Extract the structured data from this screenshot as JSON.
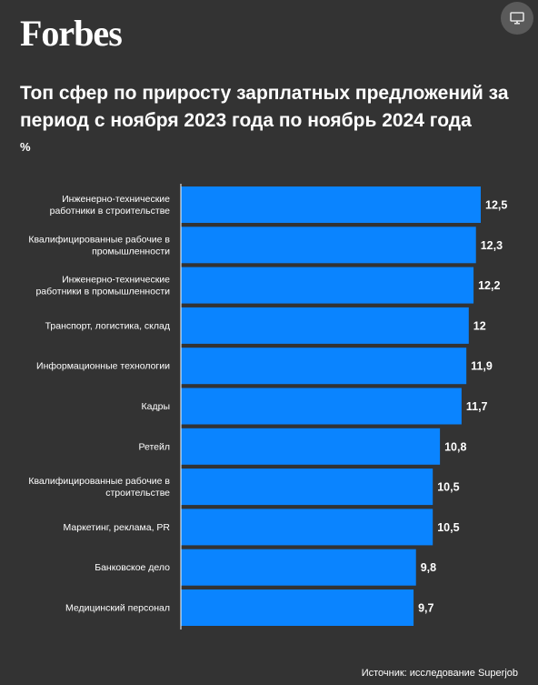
{
  "brand": {
    "logo": "Forbes",
    "screen_icon": "monitor-icon"
  },
  "title": "Топ сфер по приросту зарплатных предложений за период с ноября 2023 года по ноябрь 2024 года",
  "unit": "%",
  "source": "Источник: исследование Superjob",
  "colors": {
    "background": "#333333",
    "bar": "#0a84ff",
    "text": "#ffffff"
  },
  "chart_data": {
    "type": "bar",
    "orientation": "horizontal",
    "categories": [
      "Инженерно-технические работники в строительстве",
      "Квалифицированные рабочие в промышленности",
      "Инженерно-технические работники в промышленности",
      "Транспорт, логистика, склад",
      "Информационные технологии",
      "Кадры",
      "Ретейл",
      "Квалифицированные рабочие в строительстве",
      "Маркетинг, реклама, PR",
      "Банковское дело",
      "Медицинский персонал"
    ],
    "category_lines": [
      [
        "Инженерно-технические",
        "работники в строительстве"
      ],
      [
        "Квалифицированные рабочие в",
        "промышленности"
      ],
      [
        "Инженерно-технические",
        "работники в промышленности"
      ],
      [
        "Транспорт, логистика, склад"
      ],
      [
        "Информационные технологии"
      ],
      [
        "Кадры"
      ],
      [
        "Ретейл"
      ],
      [
        "Квалифицированные рабочие в",
        "строительстве"
      ],
      [
        "Маркетинг, реклама, PR"
      ],
      [
        "Банковское дело"
      ],
      [
        "Медицинский персонал"
      ]
    ],
    "values": [
      12.5,
      12.3,
      12.2,
      12,
      11.9,
      11.7,
      10.8,
      10.5,
      10.5,
      9.8,
      9.7
    ],
    "value_labels": [
      "12,5",
      "12,3",
      "12,2",
      "12",
      "11,9",
      "11,7",
      "10,8",
      "10,5",
      "10,5",
      "9,8",
      "9,7"
    ],
    "title": "Топ сфер по приросту зарплатных предложений за период с ноября 2023 года по ноябрь 2024 года",
    "xlabel": "",
    "ylabel": "",
    "xlim": [
      0,
      12.5
    ],
    "grid": false,
    "legend": "none"
  }
}
